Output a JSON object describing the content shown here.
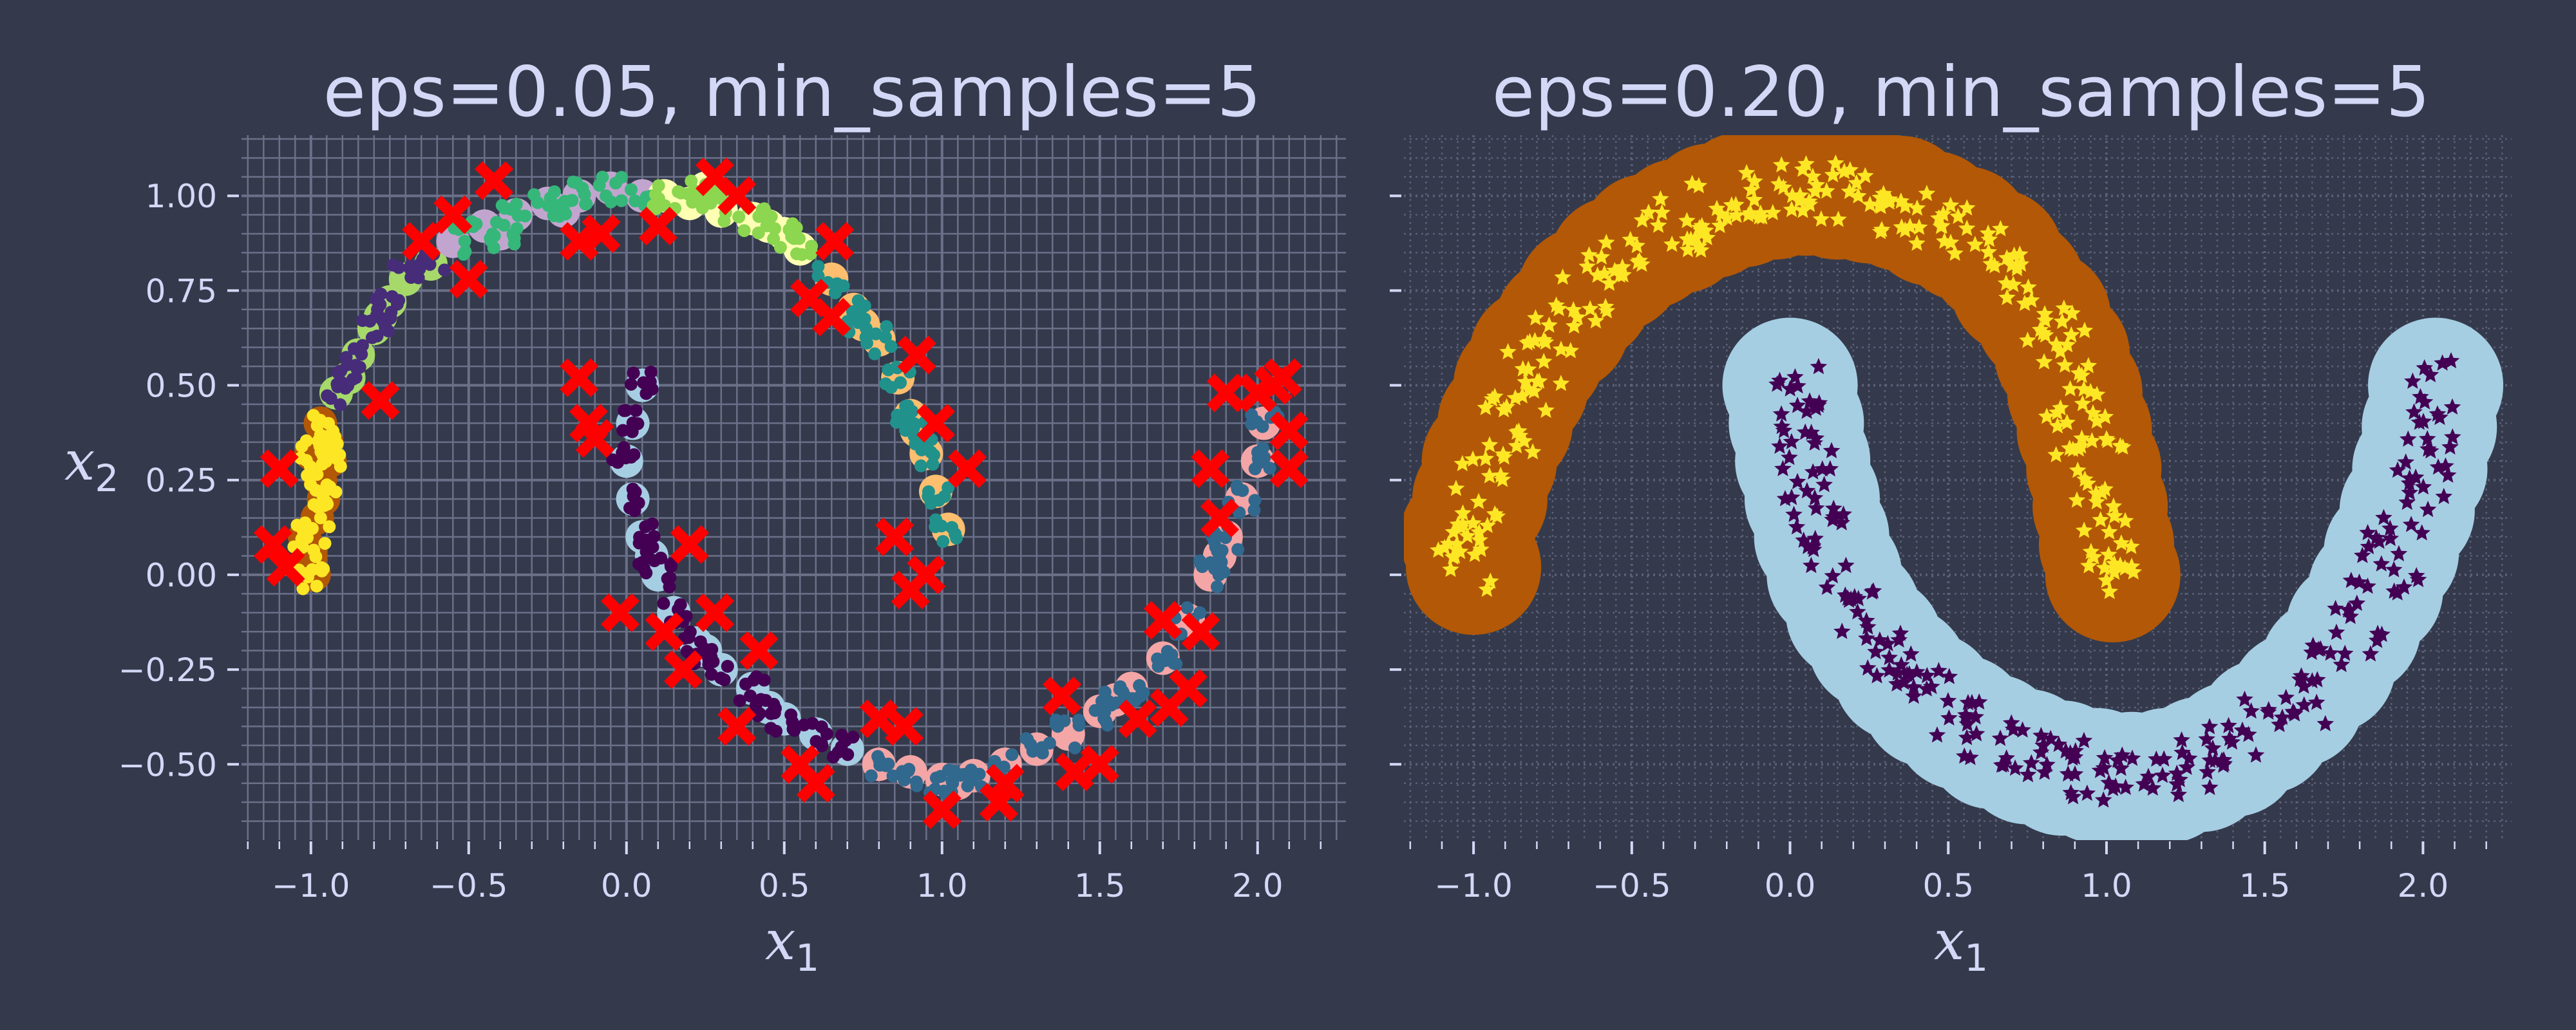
{
  "chart_data": [
    {
      "type": "scatter",
      "title": "eps=0.05, min_samples=5",
      "xlabel": "x",
      "xlabel_sub": "1",
      "ylabel": "x",
      "ylabel_sub": "2",
      "xlim": [
        -1.22,
        2.28
      ],
      "ylim": [
        -0.7,
        1.16
      ],
      "xticks": [
        -1.0,
        -0.5,
        0.0,
        0.5,
        1.0,
        1.5,
        2.0
      ],
      "xtick_labels": [
        "−1.0",
        "−0.5",
        "0.0",
        "0.5",
        "1.0",
        "1.5",
        "2.0"
      ],
      "yticks": [
        -0.5,
        -0.25,
        0.0,
        0.25,
        0.5,
        0.75,
        1.0
      ],
      "ytick_labels": [
        "−0.50",
        "−0.25",
        "0.00",
        "0.25",
        "0.50",
        "0.75",
        "1.00"
      ],
      "grid": "major+minor",
      "series": [
        {
          "halo": "#b35806",
          "marker": "#fde725",
          "points": [
            [
              -1.0,
              0.05
            ],
            [
              -0.98,
              0.15
            ],
            [
              -0.97,
              0.25
            ],
            [
              -0.95,
              0.35
            ],
            [
              -1.02,
              0.1
            ],
            [
              -0.96,
              0.2
            ],
            [
              -0.94,
              0.3
            ],
            [
              -0.99,
              0.0
            ],
            [
              -0.97,
              0.4
            ],
            [
              -1.0,
              0.32
            ]
          ]
        },
        {
          "halo": "#a6d96a",
          "marker": "#472c7a",
          "points": [
            [
              -0.92,
              0.48
            ],
            [
              -0.85,
              0.58
            ],
            [
              -0.8,
              0.65
            ],
            [
              -0.75,
              0.72
            ],
            [
              -0.7,
              0.78
            ],
            [
              -0.62,
              0.82
            ],
            [
              -0.88,
              0.52
            ],
            [
              -0.78,
              0.68
            ]
          ]
        },
        {
          "halo": "#c2a5cf",
          "marker": "#35b779",
          "points": [
            [
              -0.55,
              0.88
            ],
            [
              -0.45,
              0.92
            ],
            [
              -0.35,
              0.95
            ],
            [
              -0.25,
              0.98
            ],
            [
              -0.15,
              1.0
            ],
            [
              -0.05,
              1.02
            ],
            [
              0.05,
              1.0
            ],
            [
              -0.4,
              0.9
            ],
            [
              -0.2,
              0.96
            ]
          ]
        },
        {
          "halo": "#ffffb3",
          "marker": "#8cd650",
          "points": [
            [
              0.12,
              1.0
            ],
            [
              0.2,
              0.98
            ],
            [
              0.3,
              0.96
            ],
            [
              0.4,
              0.94
            ],
            [
              0.5,
              0.9
            ],
            [
              0.55,
              0.86
            ],
            [
              0.25,
              1.02
            ],
            [
              0.45,
              0.92
            ]
          ]
        },
        {
          "halo": "#fdbf6f",
          "marker": "#21918c",
          "points": [
            [
              0.65,
              0.78
            ],
            [
              0.72,
              0.7
            ],
            [
              0.8,
              0.62
            ],
            [
              0.86,
              0.52
            ],
            [
              0.9,
              0.42
            ],
            [
              0.95,
              0.32
            ],
            [
              0.98,
              0.22
            ],
            [
              1.02,
              0.12
            ],
            [
              0.75,
              0.66
            ],
            [
              0.92,
              0.38
            ]
          ]
        },
        {
          "halo": "#a6cee3",
          "marker": "#440154",
          "points": [
            [
              0.05,
              0.5
            ],
            [
              0.02,
              0.4
            ],
            [
              0.0,
              0.3
            ],
            [
              0.02,
              0.2
            ],
            [
              0.05,
              0.1
            ],
            [
              0.1,
              0.0
            ],
            [
              0.15,
              -0.1
            ],
            [
              0.22,
              -0.18
            ],
            [
              0.3,
              -0.25
            ],
            [
              0.4,
              -0.3
            ],
            [
              0.5,
              -0.38
            ],
            [
              0.6,
              -0.42
            ],
            [
              0.7,
              -0.46
            ],
            [
              0.08,
              0.05
            ],
            [
              0.25,
              -0.2
            ],
            [
              0.45,
              -0.35
            ]
          ]
        },
        {
          "halo": "#f4a6a6",
          "marker": "#31688e",
          "points": [
            [
              0.8,
              -0.5
            ],
            [
              0.9,
              -0.52
            ],
            [
              1.0,
              -0.54
            ],
            [
              1.1,
              -0.53
            ],
            [
              1.2,
              -0.5
            ],
            [
              1.3,
              -0.46
            ],
            [
              1.4,
              -0.42
            ],
            [
              1.5,
              -0.36
            ],
            [
              1.6,
              -0.3
            ],
            [
              1.7,
              -0.22
            ],
            [
              1.78,
              -0.12
            ],
            [
              1.85,
              0.0
            ],
            [
              1.9,
              0.1
            ],
            [
              1.95,
              0.2
            ],
            [
              2.0,
              0.3
            ],
            [
              2.02,
              0.4
            ],
            [
              1.05,
              -0.55
            ],
            [
              1.55,
              -0.33
            ],
            [
              1.88,
              0.05
            ]
          ]
        }
      ],
      "noise_color": "#ff0000",
      "noise_points": [
        [
          -1.1,
          0.28
        ],
        [
          -1.12,
          0.08
        ],
        [
          -1.08,
          0.02
        ],
        [
          -0.78,
          0.46
        ],
        [
          -0.65,
          0.88
        ],
        [
          -0.55,
          0.95
        ],
        [
          -0.5,
          0.78
        ],
        [
          -0.42,
          1.04
        ],
        [
          -0.15,
          0.88
        ],
        [
          -0.08,
          0.9
        ],
        [
          0.1,
          0.92
        ],
        [
          0.28,
          1.05
        ],
        [
          0.35,
          1.0
        ],
        [
          0.58,
          0.73
        ],
        [
          0.65,
          0.68
        ],
        [
          0.66,
          0.88
        ],
        [
          0.92,
          0.58
        ],
        [
          0.98,
          0.4
        ],
        [
          1.08,
          0.28
        ],
        [
          0.85,
          0.1
        ],
        [
          0.9,
          -0.04
        ],
        [
          0.95,
          0.0
        ],
        [
          -0.15,
          0.52
        ],
        [
          -0.12,
          0.4
        ],
        [
          -0.1,
          0.36
        ],
        [
          -0.02,
          -0.1
        ],
        [
          0.12,
          -0.15
        ],
        [
          0.18,
          -0.25
        ],
        [
          0.2,
          0.08
        ],
        [
          0.28,
          -0.1
        ],
        [
          0.35,
          -0.4
        ],
        [
          0.42,
          -0.2
        ],
        [
          0.55,
          -0.5
        ],
        [
          0.6,
          -0.55
        ],
        [
          0.8,
          -0.38
        ],
        [
          0.88,
          -0.4
        ],
        [
          1.0,
          -0.62
        ],
        [
          1.18,
          -0.6
        ],
        [
          1.2,
          -0.55
        ],
        [
          1.38,
          -0.32
        ],
        [
          1.42,
          -0.52
        ],
        [
          1.5,
          -0.5
        ],
        [
          1.62,
          -0.38
        ],
        [
          1.7,
          -0.12
        ],
        [
          1.72,
          -0.35
        ],
        [
          1.78,
          -0.3
        ],
        [
          1.82,
          -0.15
        ],
        [
          1.85,
          0.28
        ],
        [
          1.88,
          0.15
        ],
        [
          1.9,
          0.48
        ],
        [
          2.0,
          0.48
        ],
        [
          2.05,
          0.5
        ],
        [
          2.08,
          0.52
        ],
        [
          2.1,
          0.38
        ],
        [
          2.1,
          0.28
        ]
      ]
    },
    {
      "type": "scatter",
      "title": "eps=0.20, min_samples=5",
      "xlabel": "x",
      "xlabel_sub": "1",
      "xlim": [
        -1.22,
        2.28
      ],
      "ylim": [
        -0.7,
        1.16
      ],
      "xticks": [
        -1.0,
        -0.5,
        0.0,
        0.5,
        1.0,
        1.5,
        2.0
      ],
      "xtick_labels": [
        "−1.0",
        "−0.5",
        "0.0",
        "0.5",
        "1.0",
        "1.5",
        "2.0"
      ],
      "yticks": [
        -0.5,
        -0.25,
        0.0,
        0.25,
        0.5,
        0.75,
        1.0
      ],
      "grid": "dotted major+minor",
      "series": [
        {
          "halo": "#b35806",
          "marker": "#fde725",
          "marker_shape": "star",
          "points": [
            [
              -1.0,
              0.02
            ],
            [
              -1.02,
              0.1
            ],
            [
              -0.98,
              0.2
            ],
            [
              -0.95,
              0.3
            ],
            [
              -0.9,
              0.4
            ],
            [
              -0.85,
              0.5
            ],
            [
              -0.8,
              0.58
            ],
            [
              -0.72,
              0.66
            ],
            [
              -0.65,
              0.74
            ],
            [
              -0.55,
              0.82
            ],
            [
              -0.45,
              0.88
            ],
            [
              -0.35,
              0.92
            ],
            [
              -0.25,
              0.96
            ],
            [
              -0.15,
              0.99
            ],
            [
              -0.05,
              1.01
            ],
            [
              0.05,
              1.02
            ],
            [
              0.15,
              1.01
            ],
            [
              0.25,
              1.0
            ],
            [
              0.35,
              0.98
            ],
            [
              0.45,
              0.94
            ],
            [
              0.55,
              0.9
            ],
            [
              0.65,
              0.84
            ],
            [
              0.72,
              0.76
            ],
            [
              0.8,
              0.68
            ],
            [
              0.86,
              0.58
            ],
            [
              0.9,
              0.48
            ],
            [
              0.93,
              0.38
            ],
            [
              0.96,
              0.28
            ],
            [
              0.98,
              0.18
            ],
            [
              1.0,
              0.08
            ],
            [
              1.02,
              0.0
            ]
          ]
        },
        {
          "halo": "#a6cee3",
          "marker": "#440154",
          "marker_shape": "star",
          "points": [
            [
              0.0,
              0.5
            ],
            [
              0.02,
              0.4
            ],
            [
              0.04,
              0.3
            ],
            [
              0.07,
              0.2
            ],
            [
              0.1,
              0.1
            ],
            [
              0.14,
              0.0
            ],
            [
              0.2,
              -0.1
            ],
            [
              0.27,
              -0.18
            ],
            [
              0.35,
              -0.26
            ],
            [
              0.44,
              -0.33
            ],
            [
              0.54,
              -0.39
            ],
            [
              0.64,
              -0.44
            ],
            [
              0.75,
              -0.48
            ],
            [
              0.86,
              -0.51
            ],
            [
              0.97,
              -0.53
            ],
            [
              1.08,
              -0.54
            ],
            [
              1.19,
              -0.53
            ],
            [
              1.3,
              -0.5
            ],
            [
              1.4,
              -0.46
            ],
            [
              1.5,
              -0.4
            ],
            [
              1.6,
              -0.33
            ],
            [
              1.7,
              -0.24
            ],
            [
              1.78,
              -0.14
            ],
            [
              1.85,
              -0.04
            ],
            [
              1.9,
              0.06
            ],
            [
              1.95,
              0.17
            ],
            [
              1.99,
              0.28
            ],
            [
              2.02,
              0.39
            ],
            [
              2.04,
              0.5
            ]
          ]
        }
      ]
    }
  ]
}
